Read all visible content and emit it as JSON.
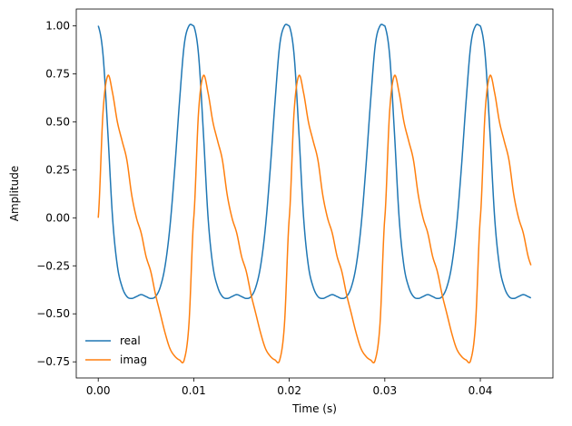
{
  "chart_data": {
    "type": "line",
    "title": "",
    "xlabel": "Time (s)",
    "ylabel": "Amplitude",
    "xlim": [
      -0.0023,
      0.0476
    ],
    "ylim": [
      -0.834,
      1.087
    ],
    "xticks": [
      0.0,
      0.01,
      0.02,
      0.03,
      0.04
    ],
    "xtick_labels": [
      "0.00",
      "0.01",
      "0.02",
      "0.03",
      "0.04"
    ],
    "yticks": [
      -0.75,
      -0.5,
      -0.25,
      0.0,
      0.25,
      0.5,
      0.75,
      1.0
    ],
    "ytick_labels": [
      "−0.75",
      "−0.50",
      "−0.25",
      "0.00",
      "0.25",
      "0.50",
      "0.75",
      "1.00"
    ],
    "grid": false,
    "legend_position": "lower-left",
    "x": [
      0.0,
      0.0005,
      0.001,
      0.0015,
      0.002,
      0.0025,
      0.003,
      0.0035,
      0.004,
      0.0045,
      0.005,
      0.0055,
      0.006,
      0.0065,
      0.007,
      0.0075,
      0.008,
      0.0085,
      0.009,
      0.0095,
      0.01
    ],
    "period": 0.01,
    "x_end": 0.0453,
    "series": [
      {
        "name": "real",
        "color": "#1f77b4",
        "values": [
          1.0,
          0.85,
          0.45,
          0.0,
          -0.25,
          -0.36,
          -0.41,
          -0.42,
          -0.41,
          -0.4,
          -0.41,
          -0.42,
          -0.41,
          -0.36,
          -0.25,
          -0.05,
          0.25,
          0.6,
          0.9,
          1.0,
          1.0
        ]
      },
      {
        "name": "imag",
        "color": "#ff7f0e",
        "values": [
          0.0,
          0.55,
          0.74,
          0.65,
          0.5,
          0.4,
          0.3,
          0.12,
          0.0,
          -0.08,
          -0.2,
          -0.28,
          -0.4,
          -0.5,
          -0.6,
          -0.68,
          -0.72,
          -0.74,
          -0.74,
          -0.55,
          0.0
        ]
      }
    ]
  }
}
